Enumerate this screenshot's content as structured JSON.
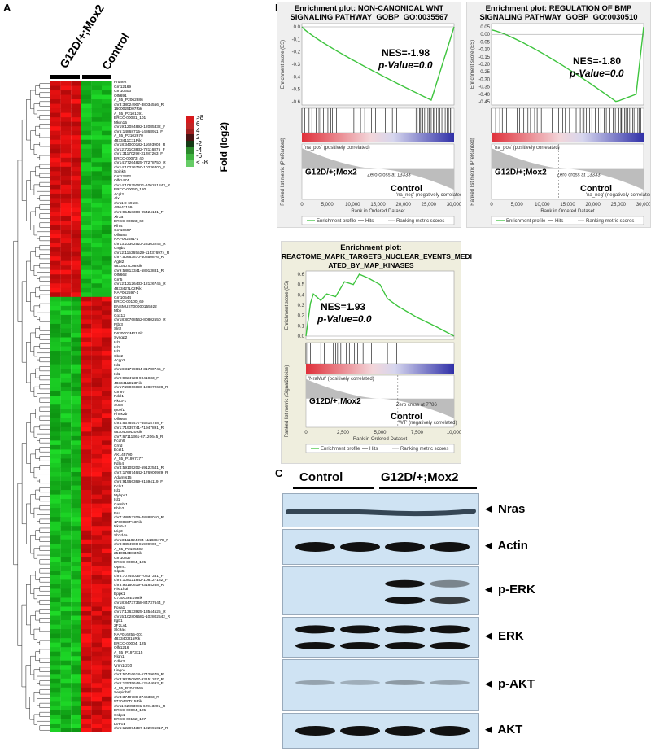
{
  "panel_a": {
    "letter": "A",
    "group1": "G12D/+;Mox2",
    "group2": "Control",
    "legend_title": "Fold (log2)",
    "legend_ticks": [
      ">8",
      "6",
      "4",
      "2",
      "-2",
      "-4",
      "-6",
      "< -8"
    ],
    "colors": {
      "up": "#d7191c",
      "down": "#1a9641",
      "mid": "#111111"
    },
    "genes": [
      "Prune2",
      "Gm12169",
      "Gm10603",
      "Olfr691",
      "A_55_P2062886",
      "chr3:38024907-38034556_R",
      "1600025D07Rik",
      "A_55_P2101391",
      "ERCC-00031_101",
      "Mkrn15",
      "chr19:12084892-12085332_F",
      "chr5:14868715-14868911_F",
      "A_55_P2102670",
      "4833411C11Rik",
      "chr18:34000182-11693908_R",
      "chr12:72103832-72116875_F",
      "chr1:31170292-31287263_F",
      "ERCC-00073_40",
      "chr14:77264825-77278750_R",
      "chr14:10276750-10236400_F",
      "Spink5",
      "Gm12302",
      "Olfr1474",
      "chr14:106250821-106261843_R",
      "ERCC-00060_180",
      "Acpl2",
      "Alx",
      "chr11:9-69181",
      "AB647159",
      "chr6:95418308-95424131_F",
      "Xlr3a",
      "ERCC-00023_60",
      "Klhl4",
      "Gm10697",
      "Olfr586",
      "NAP062681-1",
      "chr13:23362523-23363246_R",
      "Cngb3",
      "chr12:115365529-115376974_R",
      "chr7:50663870-50850876_R",
      "Agbl2",
      "4833407C08Rik",
      "chr9:58813341-58913881_R",
      "Olfr662",
      "Gm5",
      "chr12:12126433-12126745_R",
      "4833427L02Rik",
      "NAP062597-1",
      "Gm10544",
      "ERCC-00100_69",
      "ENSMUST00000155922",
      "Mbp",
      "Cox12",
      "chr18:80768562-80802550_R",
      "Ptbl3",
      "Slit2",
      "D630003M21Rik",
      "Syngp2",
      "Isl1",
      "Isl1",
      "Isl1",
      "Cbx2",
      "Acpp2",
      "Isl1",
      "chr18:31779844-31780745_F",
      "Isl1",
      "chr9:9024728-9041933_F",
      "4833411D23Rik",
      "chr17:28066990-128072628_R",
      "Gm97",
      "Pdxl1",
      "Nkx3-1",
      "Sox8",
      "Ipcef1",
      "Phox2b",
      "Olfr668",
      "chr4:65785477-65815788_F",
      "chr1:71939741-71947891_R",
      "9630405N20Rik",
      "chr7:67111361-67120645_R",
      "Pcdh9",
      "Crnd",
      "Ecel1",
      "AK145700",
      "A_55_P1997177",
      "Fdlp4",
      "chr4:59105202-59122541_R",
      "chr2:176874642-176900929_R",
      "Adamts15",
      "chr6:91566369-91594119_F",
      "Dclk1",
      "Isl1",
      "Mybpc1",
      "Isl1",
      "Gatnbt1",
      "Pbln2",
      "Psd",
      "chr7:48853209-48888010_R",
      "1700098P13Rik",
      "Nkx6-2",
      "Lrig3",
      "Sh2d4a",
      "chr13:111824094-111838478_F",
      "chr8:8854900-81909900_F",
      "A_55_P2105502",
      "2510016D03Rik",
      "Gm10837",
      "ERCC-00004_125",
      "Oprm1",
      "Glpx5",
      "chr5:70745036-70837331_F",
      "chr5:108121842-108127182_F",
      "chr3:93150619-93184268_R",
      "Hist1h3i",
      "Eppk1",
      "C730036E19Rik",
      "chr18:84737358-84737644_F",
      "Foxa1",
      "chr17:13633925-13544525_R",
      "chr15:102806581-102802542_R",
      "Itgb1",
      "2F2Lv1",
      "Slc9a4",
      "NAP016255-001",
      "4833403I15Rik",
      "ERCC-00004_125",
      "Olfr1216",
      "A_55_P1973115",
      "Nlgn1",
      "Cdhr3",
      "Vmn1r230",
      "Lingo4",
      "chr3:57416618-57429679_R",
      "chr3:93150907-93151207_R",
      "chr6:12535648-12544693_F",
      "A_55_P2043569",
      "Serpinb9f",
      "chr4:3740789-3746383_R",
      "5730420D15Rik",
      "chr11:62893081-62943201_R",
      "ERCC-00004_125",
      "Ssbp1",
      "ERCC-00162_107",
      "Lrrtm1",
      "chr5:122994397-122995017_R"
    ]
  },
  "panel_b": {
    "letter": "B",
    "plot1": {
      "title1": "Enrichment plot: NON-CANONICAL WNT",
      "title2": "SIGNALING PATHWAY_GOBP_GO:0035567",
      "nes": "NES=-1.98",
      "pval": "p-Value=0.0",
      "es_ticks": [
        "0.0",
        "-0.1",
        "-0.2",
        "-0.3",
        "-0.4",
        "-0.5",
        "-0.6"
      ],
      "pos_label": "'na_pos' (positively correlated)",
      "neg_label": "'na_neg' (negatively correlated)",
      "zero": "Zero cross at 13333",
      "g1": "G12D/+;Mox2",
      "g2": "Control"
    },
    "plot2": {
      "title1": "Enrichment plot: REGULATION OF BMP",
      "title2": "SIGNALING PATHWAY_GOBP_GO:0030510",
      "nes": "NES=-1.80",
      "pval": "p-Value=0.0",
      "es_ticks": [
        "0.05",
        "0.00",
        "-0.05",
        "-0.10",
        "-0.15",
        "-0.20",
        "-0.25",
        "-0.30",
        "-0.35",
        "-0.40",
        "-0.45"
      ],
      "pos_label": "'na_pos' (positively correlated)",
      "neg_label": "'na_neg' (negatively correlated)",
      "zero": "Zero cross at 13333",
      "g1": "G12D/+;Mox2",
      "g2": "Control"
    },
    "plot3": {
      "title1": "Enrichment plot:",
      "title2": "REACTOME_MAPK_TARGETS_NUCLEAR_EVENTS_MEDI",
      "title3": "ATED_BY_MAP_KINASES",
      "nes": "NES=1.93",
      "pval": "p-Value=0.0",
      "es_ticks": [
        "0.6",
        "0.5",
        "0.4",
        "0.3",
        "0.2",
        "0.1",
        "0.0"
      ],
      "pos_label": "'NraMut' (positively correlated)",
      "neg_label": "'WT' (negatively correlated)",
      "zero": "Zero cross at 7786",
      "g1": "G12D/+;Mox2",
      "g2": "Control"
    },
    "ylabel_es": "Enrichment score (ES)",
    "ylabel_rank": "Ranked list metric (PreRanked)",
    "ylabel_rank3": "Ranked list metric (Signal2Noise)",
    "xlabel": "Rank in Ordered Dataset",
    "xticks12": [
      "0",
      "5,000",
      "10,000",
      "15,000",
      "20,000",
      "25,000",
      "30,000"
    ],
    "xticks3": [
      "0",
      "2,500",
      "5,000",
      "7,500",
      "10,000"
    ],
    "legend_items": [
      "Enrichment profile",
      "Hits",
      "Ranking metric scores"
    ]
  },
  "panel_c": {
    "letter": "C",
    "control": "Control",
    "mutant": "G12D/+;Mox2",
    "blots": [
      {
        "label": "Nras"
      },
      {
        "label": "Actin"
      },
      {
        "label": "p-ERK"
      },
      {
        "label": "ERK"
      },
      {
        "label": "p-AKT"
      },
      {
        "label": "AKT"
      }
    ]
  }
}
